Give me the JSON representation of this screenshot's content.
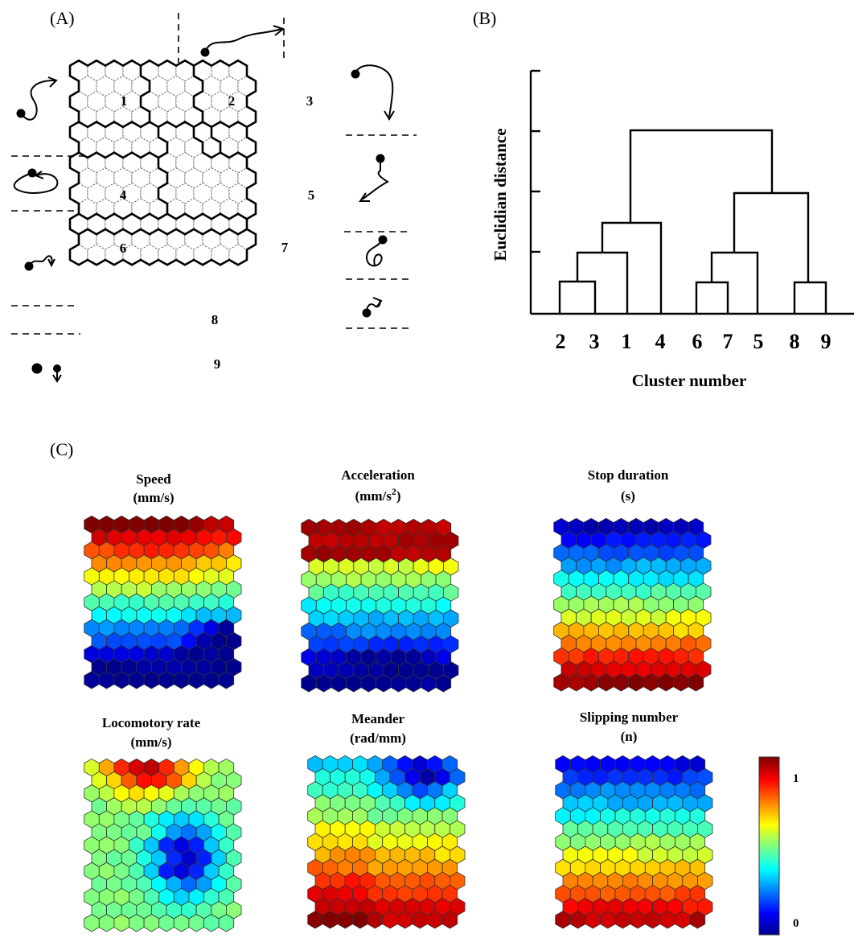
{
  "panels": {
    "a": "(A)",
    "b": "(B)",
    "c": "(C)"
  },
  "som_clusters": [
    "1",
    "2",
    "3",
    "4",
    "5",
    "6",
    "7",
    "8",
    "9"
  ],
  "dendrogram": {
    "ylabel": "Euclidian distance",
    "xlabel": "Cluster number",
    "leaf_order": [
      "2",
      "3",
      "1",
      "4",
      "6",
      "7",
      "5",
      "8",
      "9"
    ]
  },
  "component_maps": [
    {
      "title": "Speed",
      "unit": "(mm/s)",
      "unit_sup": ""
    },
    {
      "title": "Acceleration",
      "unit": "(mm/s",
      "unit_sup": "2",
      "unit_end": ")"
    },
    {
      "title": "Stop duration",
      "unit": "(s)",
      "unit_sup": ""
    },
    {
      "title": "Locomotory rate",
      "unit": "(mm/s)",
      "unit_sup": ""
    },
    {
      "title": "Meander",
      "unit": "(rad/mm)",
      "unit_sup": ""
    },
    {
      "title": "Slipping number",
      "unit": "(n)",
      "unit_sup": ""
    }
  ],
  "colorbar": {
    "max_label": "1",
    "min_label": "0"
  }
}
